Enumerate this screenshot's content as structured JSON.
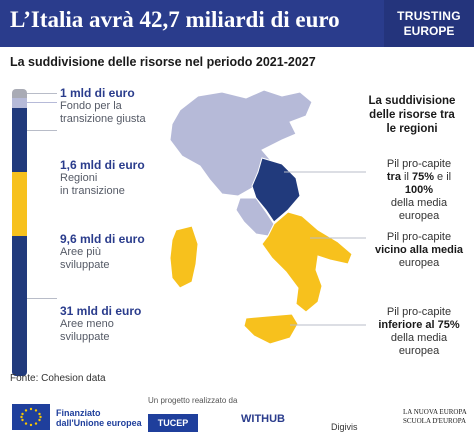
{
  "header": {
    "title": "L’Italia avrà 42,7 miliardi di euro",
    "logo_line1": "TRUSTING",
    "logo_line2": "EUROPE"
  },
  "subtitle": "La suddivisione delle risorse nel periodo 2021-2027",
  "colors": {
    "header_bg": "#2a3c8c",
    "transition_fund": "#a9abb5",
    "transition_regions": "#b6bad8",
    "developed_regions": "#213a7c",
    "less_developed_regions": "#f7c11d"
  },
  "allocations": [
    {
      "value": "1 mld di euro",
      "desc_line1": "Fondo per la",
      "desc_line2": "transizione giusta",
      "amount_bn": 1,
      "color": "#a9abb5"
    },
    {
      "value": "1,6 mld di euro",
      "desc_line1": "Regioni",
      "desc_line2": "in transizione",
      "amount_bn": 1.6,
      "color": "#b6bad8"
    },
    {
      "value": "9,6 mld di euro",
      "desc_line1": "Aree più",
      "desc_line2": "sviluppate",
      "amount_bn": 9.6,
      "color": "#213a7c"
    },
    {
      "value": "31 mld di euro",
      "desc_line1": "Aree meno",
      "desc_line2": "sviluppate",
      "amount_bn": 31,
      "color": "#f7c11d"
    }
  ],
  "regions": {
    "title_line1": "La suddivisione",
    "title_line2": "delle risorse tra",
    "title_line3": "le regioni",
    "transition": {
      "line1": "Pil pro-capite",
      "line2_bold_a": "tra",
      "line2_mid": " il ",
      "line2_bold_b": "75%",
      "line2_end": " e il ",
      "line2_bold_c": "100%",
      "line3": "della media europea"
    },
    "developed": {
      "line1": "Pil pro-capite",
      "line2_bold": "vicino alla media",
      "line3": "europea"
    },
    "less_developed": {
      "line1": "Pil pro-capite",
      "line2_bold": "inferiore al 75%",
      "line3": "della media europea"
    }
  },
  "source": "Fonte: Cohesion data",
  "footer": {
    "eu_line1": "Finanziato",
    "eu_line2": "dall'Unione europea",
    "project_text": "Un progetto realizzato da",
    "tucep": "TUCEP",
    "withub": "WITHUB",
    "digivis": "Digivis",
    "nuova_line1": "LA NUOVA EUROPA",
    "nuova_line2": "SCUOLA D'EUROPA"
  }
}
